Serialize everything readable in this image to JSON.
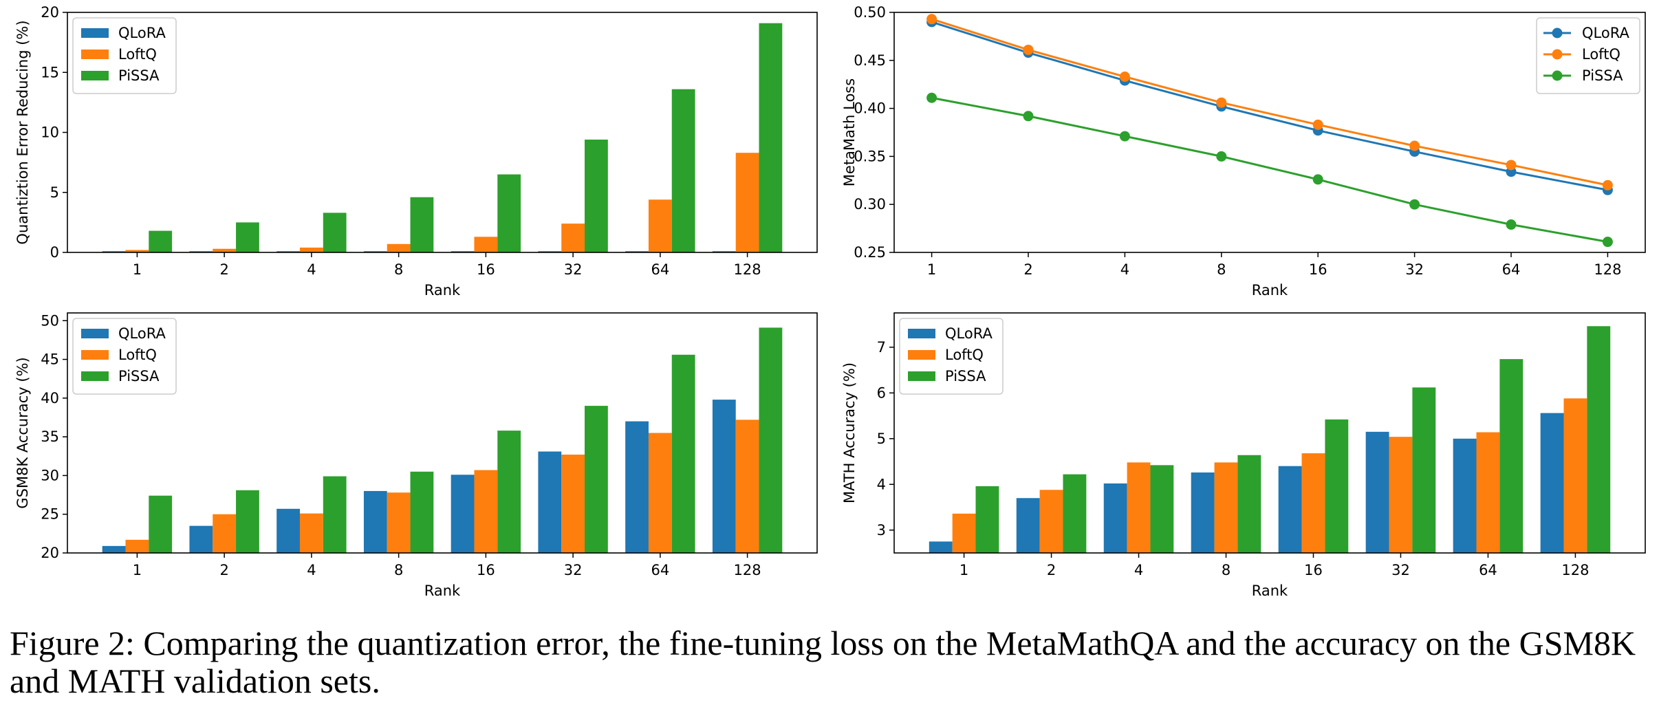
{
  "chart_data": [
    {
      "type": "bar",
      "ylabel": "Quantiztion Error Reducing (%)",
      "xlabel": "Rank",
      "categories": [
        "1",
        "2",
        "4",
        "8",
        "16",
        "32",
        "64",
        "128"
      ],
      "ylim": [
        0,
        20
      ],
      "yticks": [
        0,
        5,
        10,
        15,
        20
      ],
      "legend_position": "top-left",
      "series": [
        {
          "name": "QLoRA",
          "color": "#1f77b4",
          "values": [
            0.1,
            0.1,
            0.1,
            0.1,
            0.1,
            0.1,
            0.1,
            0.1
          ]
        },
        {
          "name": "LoftQ",
          "color": "#ff7f0e",
          "values": [
            0.2,
            0.3,
            0.4,
            0.7,
            1.3,
            2.4,
            4.4,
            8.3
          ]
        },
        {
          "name": "PiSSA",
          "color": "#2ca02c",
          "values": [
            1.8,
            2.5,
            3.3,
            4.6,
            6.5,
            9.4,
            13.6,
            19.1
          ]
        }
      ]
    },
    {
      "type": "line",
      "ylabel": "MetaMath Loss",
      "xlabel": "Rank",
      "categories": [
        "1",
        "2",
        "4",
        "8",
        "16",
        "32",
        "64",
        "128"
      ],
      "ylim": [
        0.25,
        0.5
      ],
      "yticks": [
        "0.25",
        "0.30",
        "0.35",
        "0.40",
        "0.45",
        "0.50"
      ],
      "legend_position": "top-right",
      "series": [
        {
          "name": "QLoRA",
          "color": "#1f77b4",
          "values": [
            0.49,
            0.458,
            0.429,
            0.402,
            0.377,
            0.355,
            0.334,
            0.315
          ]
        },
        {
          "name": "LoftQ",
          "color": "#ff7f0e",
          "values": [
            0.493,
            0.461,
            0.433,
            0.406,
            0.383,
            0.361,
            0.341,
            0.32
          ]
        },
        {
          "name": "PiSSA",
          "color": "#2ca02c",
          "values": [
            0.411,
            0.392,
            0.371,
            0.35,
            0.326,
            0.3,
            0.279,
            0.261
          ]
        }
      ]
    },
    {
      "type": "bar",
      "ylabel": "GSM8K Accuracy (%)",
      "xlabel": "Rank",
      "categories": [
        "1",
        "2",
        "4",
        "8",
        "16",
        "32",
        "64",
        "128"
      ],
      "ylim": [
        20,
        51
      ],
      "yticks": [
        20,
        25,
        30,
        35,
        40,
        45,
        50
      ],
      "legend_position": "top-left",
      "series": [
        {
          "name": "QLoRA",
          "color": "#1f77b4",
          "values": [
            20.9,
            23.5,
            25.7,
            28.0,
            30.1,
            33.1,
            37.0,
            39.8
          ]
        },
        {
          "name": "LoftQ",
          "color": "#ff7f0e",
          "values": [
            21.7,
            25.0,
            25.1,
            27.8,
            30.7,
            32.7,
            35.5,
            37.2
          ]
        },
        {
          "name": "PiSSA",
          "color": "#2ca02c",
          "values": [
            27.4,
            28.1,
            29.9,
            30.5,
            35.8,
            39.0,
            45.6,
            49.1
          ]
        }
      ]
    },
    {
      "type": "bar",
      "ylabel": "MATH Accuracy (%)",
      "xlabel": "Rank",
      "categories": [
        "1",
        "2",
        "4",
        "8",
        "16",
        "32",
        "64",
        "128"
      ],
      "ylim": [
        2.5,
        7.75
      ],
      "yticks": [
        3,
        4,
        5,
        6,
        7
      ],
      "legend_position": "top-left",
      "series": [
        {
          "name": "QLoRA",
          "color": "#1f77b4",
          "values": [
            2.75,
            3.7,
            4.02,
            4.26,
            4.4,
            5.15,
            5.0,
            5.56
          ]
        },
        {
          "name": "LoftQ",
          "color": "#ff7f0e",
          "values": [
            3.36,
            3.88,
            4.48,
            4.48,
            4.68,
            5.04,
            5.14,
            5.88
          ]
        },
        {
          "name": "PiSSA",
          "color": "#2ca02c",
          "values": [
            3.96,
            4.22,
            4.42,
            4.64,
            5.42,
            6.12,
            6.74,
            7.46
          ]
        }
      ]
    }
  ],
  "caption": "Figure 2: Comparing the quantization error, the fine-tuning loss on the MetaMathQA and the accuracy on the GSM8K and MATH validation sets."
}
